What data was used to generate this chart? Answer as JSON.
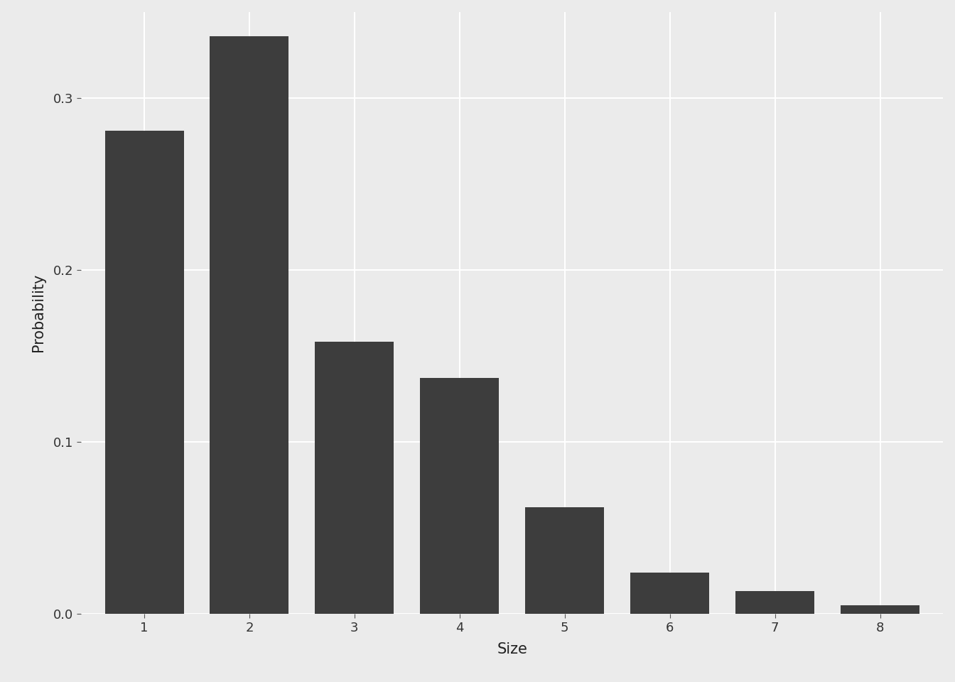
{
  "categories": [
    1,
    2,
    3,
    4,
    5,
    6,
    7,
    8
  ],
  "values": [
    0.281,
    0.336,
    0.158,
    0.137,
    0.062,
    0.024,
    0.013,
    0.005
  ],
  "bar_color": "#3d3d3d",
  "xlabel": "Size",
  "ylabel": "Probability",
  "ylim": [
    0,
    0.35
  ],
  "yticks": [
    0.0,
    0.1,
    0.2,
    0.3
  ],
  "background_color": "#ebebeb",
  "panel_background": "#ebebeb",
  "grid_color": "#ffffff",
  "tick_label_fontsize": 13,
  "axis_label_fontsize": 15,
  "bar_width": 0.75,
  "font_family": "DejaVu Sans"
}
